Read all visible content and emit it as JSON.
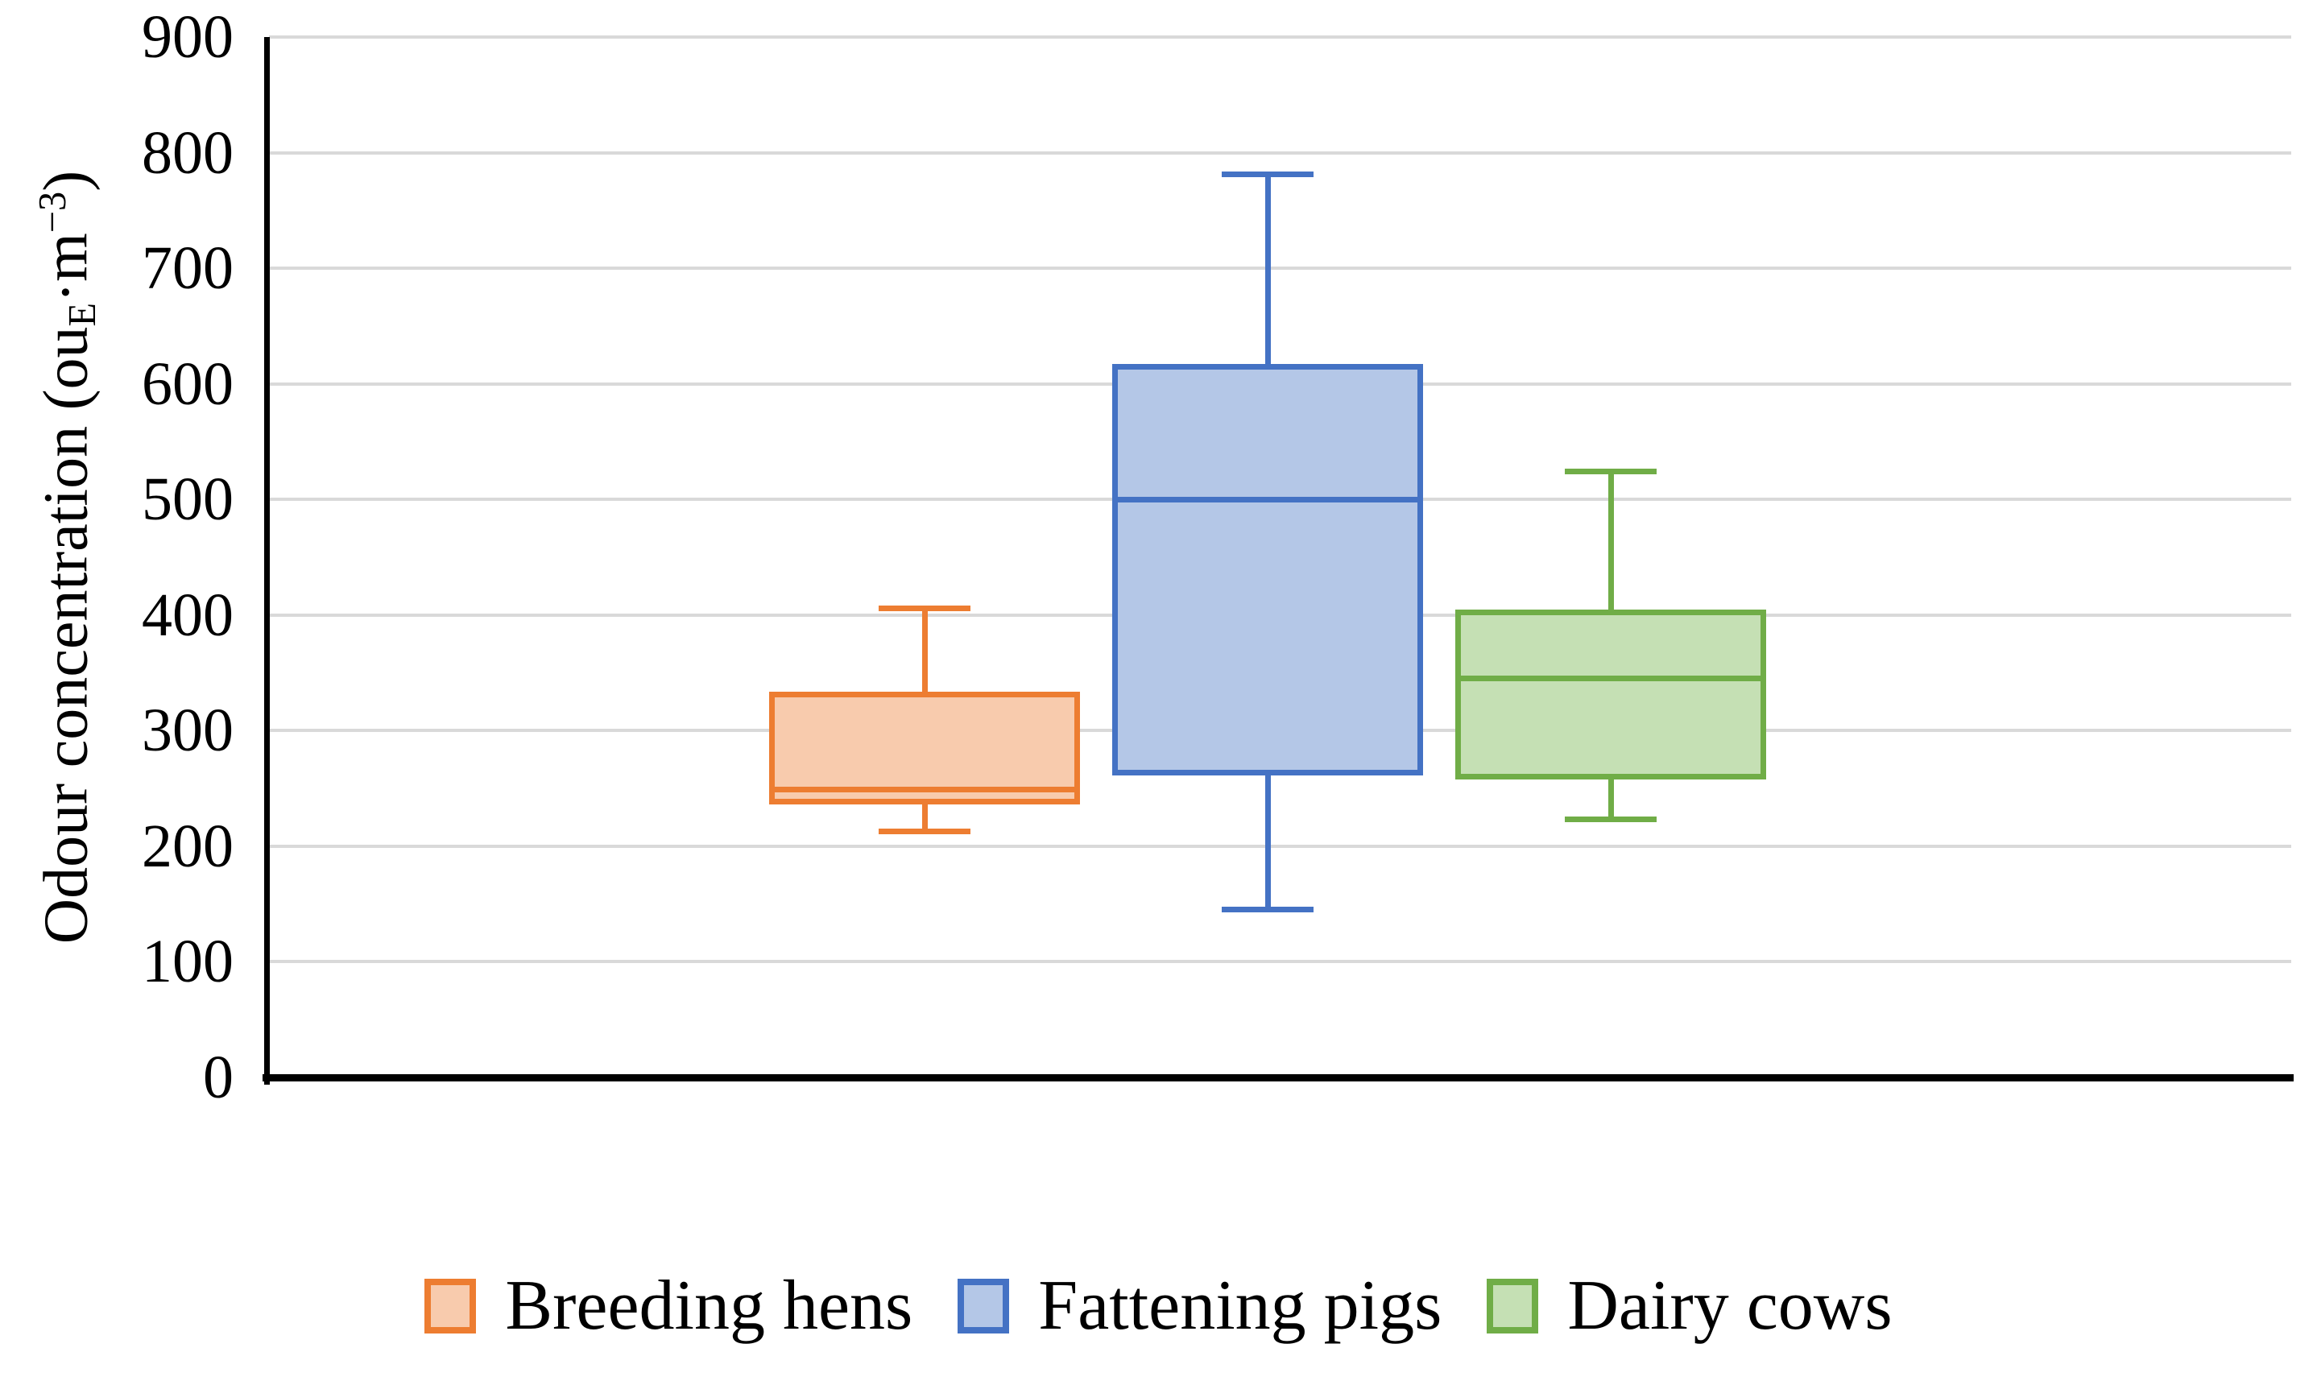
{
  "figure": {
    "background": "#ffffff",
    "text_color": "#000000",
    "gridline_color": "#d9d9d9",
    "axis_color": "#000000"
  },
  "y_axis": {
    "label_parts": {
      "prefix": "Odour concentration (ou",
      "sub": "E",
      "mid": "·m",
      "sup": "−3",
      "suffix": ")"
    },
    "min": 0,
    "max": 900,
    "ticks": [
      0,
      100,
      200,
      300,
      400,
      500,
      600,
      700,
      800,
      900
    ]
  },
  "chart_data": {
    "type": "box",
    "title": "",
    "xlabel": "",
    "ylabel": "Odour concentration (ou_E·m^−3)",
    "ylim": [
      0,
      900
    ],
    "ytick_interval": 100,
    "grid": "horizontal",
    "legend_position": "bottom",
    "series": [
      {
        "name": "Breeding hens",
        "min": 213,
        "q1": 236,
        "median": 249,
        "q3": 334,
        "max": 406,
        "border_color": "#ED7D31",
        "fill_color": "#F8CBAD"
      },
      {
        "name": "Fattening pigs",
        "min": 145,
        "q1": 261,
        "median": 500,
        "q3": 617,
        "max": 781,
        "border_color": "#4472C4",
        "fill_color": "#B4C7E7"
      },
      {
        "name": "Dairy cows",
        "min": 223,
        "q1": 258,
        "median": 345,
        "q3": 405,
        "max": 524,
        "border_color": "#70AD47",
        "fill_color": "#C5E0B4"
      }
    ]
  },
  "legend": {
    "items": [
      "Breeding hens",
      "Fattening pigs",
      "Dairy cows"
    ]
  }
}
